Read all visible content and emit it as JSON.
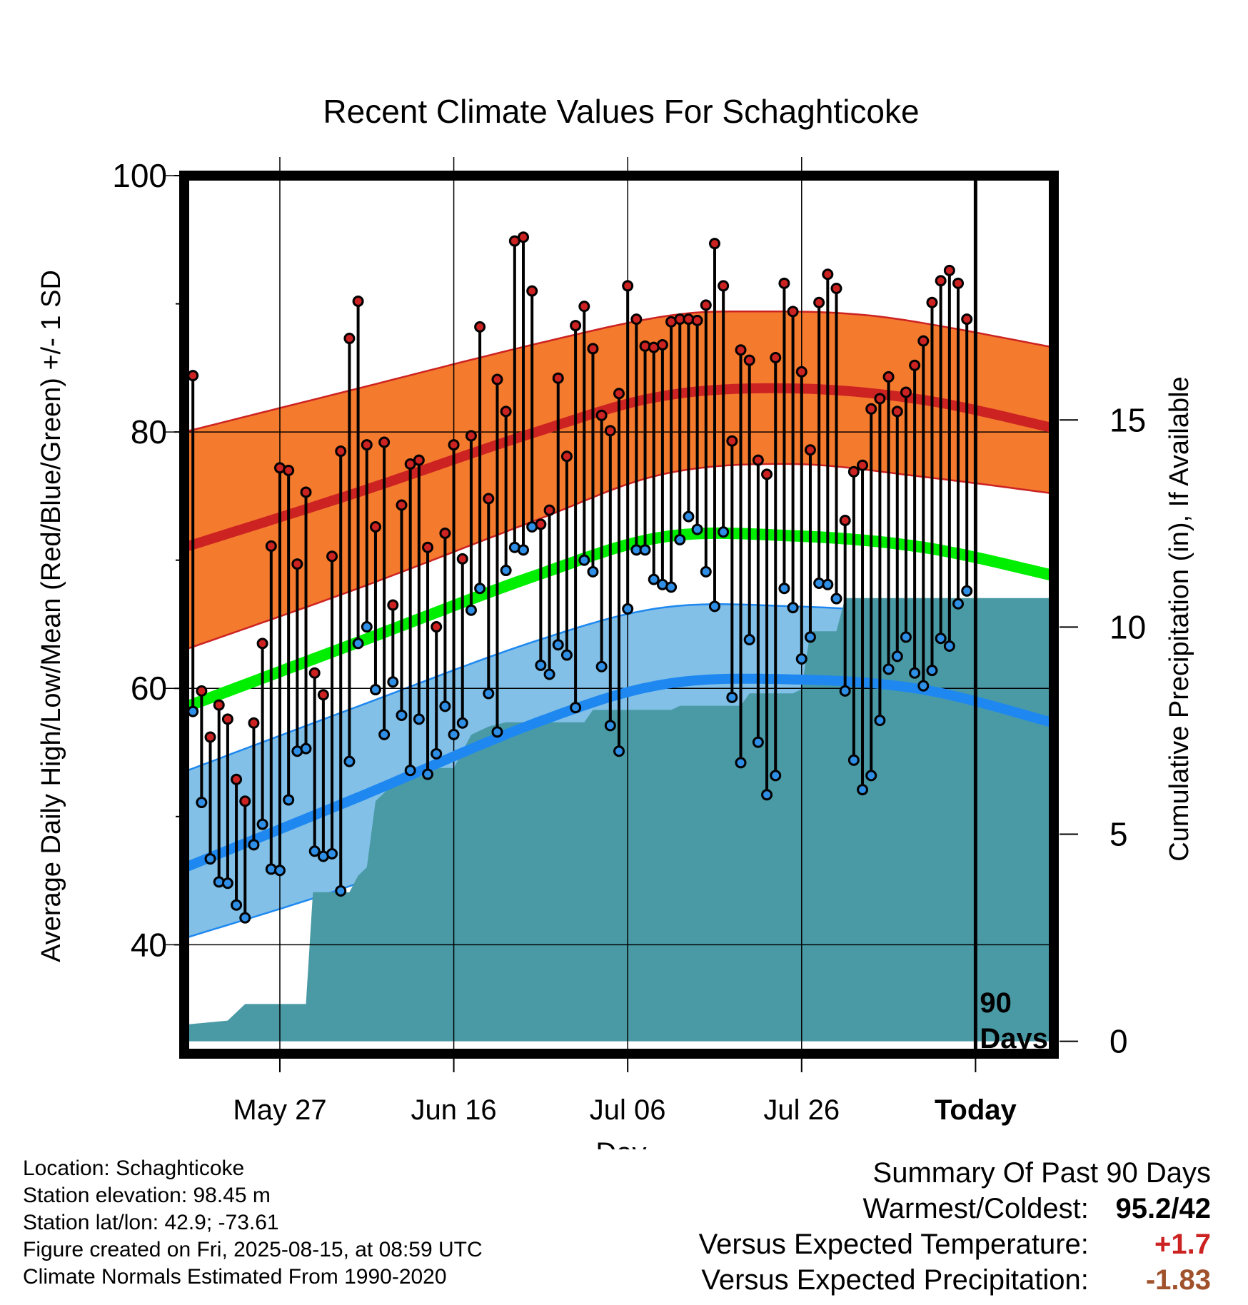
{
  "chart_data": {
    "type": "line",
    "title": "Recent Climate Values For Schaghticoke",
    "xlabel": "Day",
    "ylabel": "Average Daily High/Low/Mean (Red/Blue/Green) +/- 1 SD",
    "y2label": "Cumulative Precipitation (in), If Available",
    "ylim": [
      31.5,
      100
    ],
    "y2lim": [
      -0.3,
      20.9
    ],
    "y_ticks": [
      "100",
      "80",
      "60",
      "40"
    ],
    "y2_ticks": [
      "15",
      "10",
      "5",
      "0"
    ],
    "x_ticks": [
      "May 27",
      "Jun 16",
      "Jul 06",
      "Jul 26",
      "Today"
    ],
    "x_tick_days": [
      11,
      31,
      51,
      71,
      91
    ],
    "xlim": [
      0,
      100
    ],
    "today_marker_label": [
      "90",
      "Days"
    ],
    "grid": true,
    "days": [
      1,
      2,
      3,
      4,
      5,
      6,
      7,
      8,
      9,
      10,
      11,
      12,
      13,
      14,
      15,
      16,
      17,
      18,
      19,
      20,
      21,
      22,
      23,
      24,
      25,
      26,
      27,
      28,
      29,
      30,
      31,
      32,
      33,
      34,
      35,
      36,
      37,
      38,
      39,
      40,
      41,
      42,
      43,
      44,
      45,
      46,
      47,
      48,
      49,
      50,
      51,
      52,
      53,
      54,
      55,
      56,
      57,
      58,
      59,
      60,
      61,
      62,
      63,
      64,
      65,
      66,
      67,
      68,
      69,
      70,
      71,
      72,
      73,
      74,
      75,
      76,
      77,
      78,
      79,
      80,
      81,
      82,
      83,
      84,
      85,
      86,
      87,
      88,
      89,
      90
    ],
    "daily_high": [
      84.4,
      59.8,
      56.2,
      58.7,
      57.6,
      52.9,
      51.2,
      57.3,
      63.5,
      71.1,
      77.2,
      77.0,
      69.7,
      75.3,
      61.2,
      59.5,
      70.3,
      78.5,
      87.3,
      90.2,
      79.0,
      72.6,
      79.2,
      66.5,
      74.3,
      77.5,
      77.8,
      71.0,
      64.8,
      72.1,
      79.0,
      70.1,
      79.7,
      88.2,
      74.8,
      84.1,
      81.6,
      94.9,
      95.2,
      91.0,
      72.8,
      73.9,
      84.2,
      78.1,
      88.3,
      89.8,
      86.5,
      81.3,
      80.1,
      83.0,
      91.4,
      88.8,
      86.7,
      86.6,
      86.8,
      88.6,
      88.8,
      88.8,
      88.7,
      89.9,
      94.7,
      91.4,
      79.3,
      86.4,
      85.6,
      77.8,
      76.7,
      85.8,
      91.6,
      89.4,
      84.7,
      78.6,
      90.1,
      92.3,
      91.2,
      73.1,
      76.9,
      77.4,
      81.8,
      82.6,
      84.3,
      81.6,
      83.1,
      85.2,
      87.1,
      90.1,
      91.8,
      92.6,
      91.6,
      88.8
    ],
    "daily_low": [
      58.2,
      51.1,
      46.7,
      44.9,
      44.8,
      43.1,
      42.1,
      47.8,
      49.4,
      45.9,
      45.8,
      51.3,
      55.1,
      55.3,
      47.3,
      46.9,
      47.1,
      44.2,
      54.3,
      63.5,
      64.8,
      59.9,
      56.4,
      60.5,
      57.9,
      53.6,
      57.6,
      53.3,
      54.9,
      58.6,
      56.4,
      57.3,
      66.1,
      67.8,
      59.6,
      56.6,
      69.2,
      71.0,
      70.8,
      72.6,
      61.8,
      61.1,
      63.4,
      62.6,
      58.5,
      70.0,
      69.1,
      61.7,
      57.1,
      55.1,
      66.2,
      70.8,
      70.8,
      68.5,
      68.1,
      67.9,
      71.6,
      73.4,
      72.4,
      69.1,
      66.4,
      72.2,
      59.3,
      54.2,
      63.8,
      55.8,
      51.7,
      53.2,
      67.8,
      66.3,
      62.3,
      64.0,
      68.2,
      68.1,
      67.0,
      59.8,
      54.4,
      52.1,
      53.2,
      57.5,
      61.5,
      62.5,
      64.0,
      61.2,
      60.2,
      61.4,
      63.9,
      63.3,
      66.6,
      67.6
    ],
    "normal_high_knots": [
      [
        0,
        71.0
      ],
      [
        20,
        75.3
      ],
      [
        40,
        79.9
      ],
      [
        55,
        82.8
      ],
      [
        70,
        83.4
      ],
      [
        85,
        82.5
      ],
      [
        100,
        80.3
      ]
    ],
    "normal_high_sd_upper_knots": [
      [
        0,
        80.0
      ],
      [
        20,
        83.4
      ],
      [
        40,
        86.8
      ],
      [
        55,
        89.0
      ],
      [
        65,
        89.4
      ],
      [
        80,
        89.0
      ],
      [
        100,
        86.6
      ]
    ],
    "normal_high_sd_lower_knots": [
      [
        0,
        63.0
      ],
      [
        20,
        67.8
      ],
      [
        40,
        73.0
      ],
      [
        55,
        76.7
      ],
      [
        70,
        77.5
      ],
      [
        85,
        76.5
      ],
      [
        100,
        75.2
      ]
    ],
    "normal_mean_knots": [
      [
        0,
        58.5
      ],
      [
        20,
        63.6
      ],
      [
        40,
        68.7
      ],
      [
        55,
        71.8
      ],
      [
        70,
        71.9
      ],
      [
        85,
        71.0
      ],
      [
        100,
        68.8
      ]
    ],
    "normal_low_knots": [
      [
        0,
        46.0
      ],
      [
        20,
        51.5
      ],
      [
        40,
        57.2
      ],
      [
        55,
        60.3
      ],
      [
        70,
        60.7
      ],
      [
        85,
        59.9
      ],
      [
        100,
        57.3
      ]
    ],
    "normal_low_sd_upper_knots": [
      [
        0,
        53.5
      ],
      [
        20,
        58.6
      ],
      [
        40,
        63.6
      ],
      [
        55,
        66.3
      ],
      [
        70,
        66.4
      ],
      [
        85,
        65.7
      ],
      [
        100,
        64.0
      ]
    ],
    "normal_low_sd_lower_knots": [
      [
        0,
        40.5
      ],
      [
        20,
        44.8
      ],
      [
        40,
        50.1
      ],
      [
        55,
        54.5
      ],
      [
        70,
        55.3
      ],
      [
        85,
        54.3
      ],
      [
        100,
        51.5
      ]
    ],
    "cumulative_precip_steps": [
      [
        0,
        0.4
      ],
      [
        5,
        0.5
      ],
      [
        7,
        0.9
      ],
      [
        14,
        0.9
      ],
      [
        14.8,
        3.6
      ],
      [
        19,
        3.6
      ],
      [
        20,
        4.0
      ],
      [
        21,
        4.2
      ],
      [
        22,
        5.8
      ],
      [
        23,
        6.0
      ],
      [
        24,
        6.2
      ],
      [
        25,
        6.4
      ],
      [
        28,
        6.4
      ],
      [
        29,
        6.6
      ],
      [
        31,
        6.6
      ],
      [
        32,
        7.0
      ],
      [
        33,
        7.4
      ],
      [
        35,
        7.6
      ],
      [
        37,
        7.7
      ],
      [
        46,
        7.7
      ],
      [
        47,
        8.0
      ],
      [
        56,
        8.0
      ],
      [
        57,
        8.1
      ],
      [
        64,
        8.1
      ],
      [
        65,
        8.4
      ],
      [
        70,
        8.4
      ],
      [
        71,
        8.5
      ],
      [
        72,
        9.9
      ],
      [
        75,
        9.9
      ],
      [
        76,
        10.7
      ],
      [
        100,
        10.7
      ]
    ],
    "colors": {
      "high": "#cc2222",
      "high_band": "#f47a2e",
      "mean": "#00ee00",
      "low": "#1e88f0",
      "low_band": "#82c0e8",
      "precip": "#4a9aa6",
      "high_dot": "#cc2222",
      "low_dot": "#2f8fe6"
    }
  },
  "info": {
    "location": "Location: Schaghticoke",
    "elevation": "Station elevation: 98.45 m",
    "latlon": "Station lat/lon: 42.9; -73.61",
    "created": "Figure created on Fri, 2025-08-15, at 08:59 UTC",
    "normals": "Climate Normals Estimated From 1990-2020"
  },
  "summary": {
    "title": "Summary Of Past 90 Days",
    "warmest_label": "Warmest/Coldest:",
    "warmest_value": "95.2/42",
    "temp_label": "Versus Expected Temperature:",
    "temp_value": "+1.7",
    "precip_label": "Versus Expected Precipitation:",
    "precip_value": "-1.83"
  }
}
